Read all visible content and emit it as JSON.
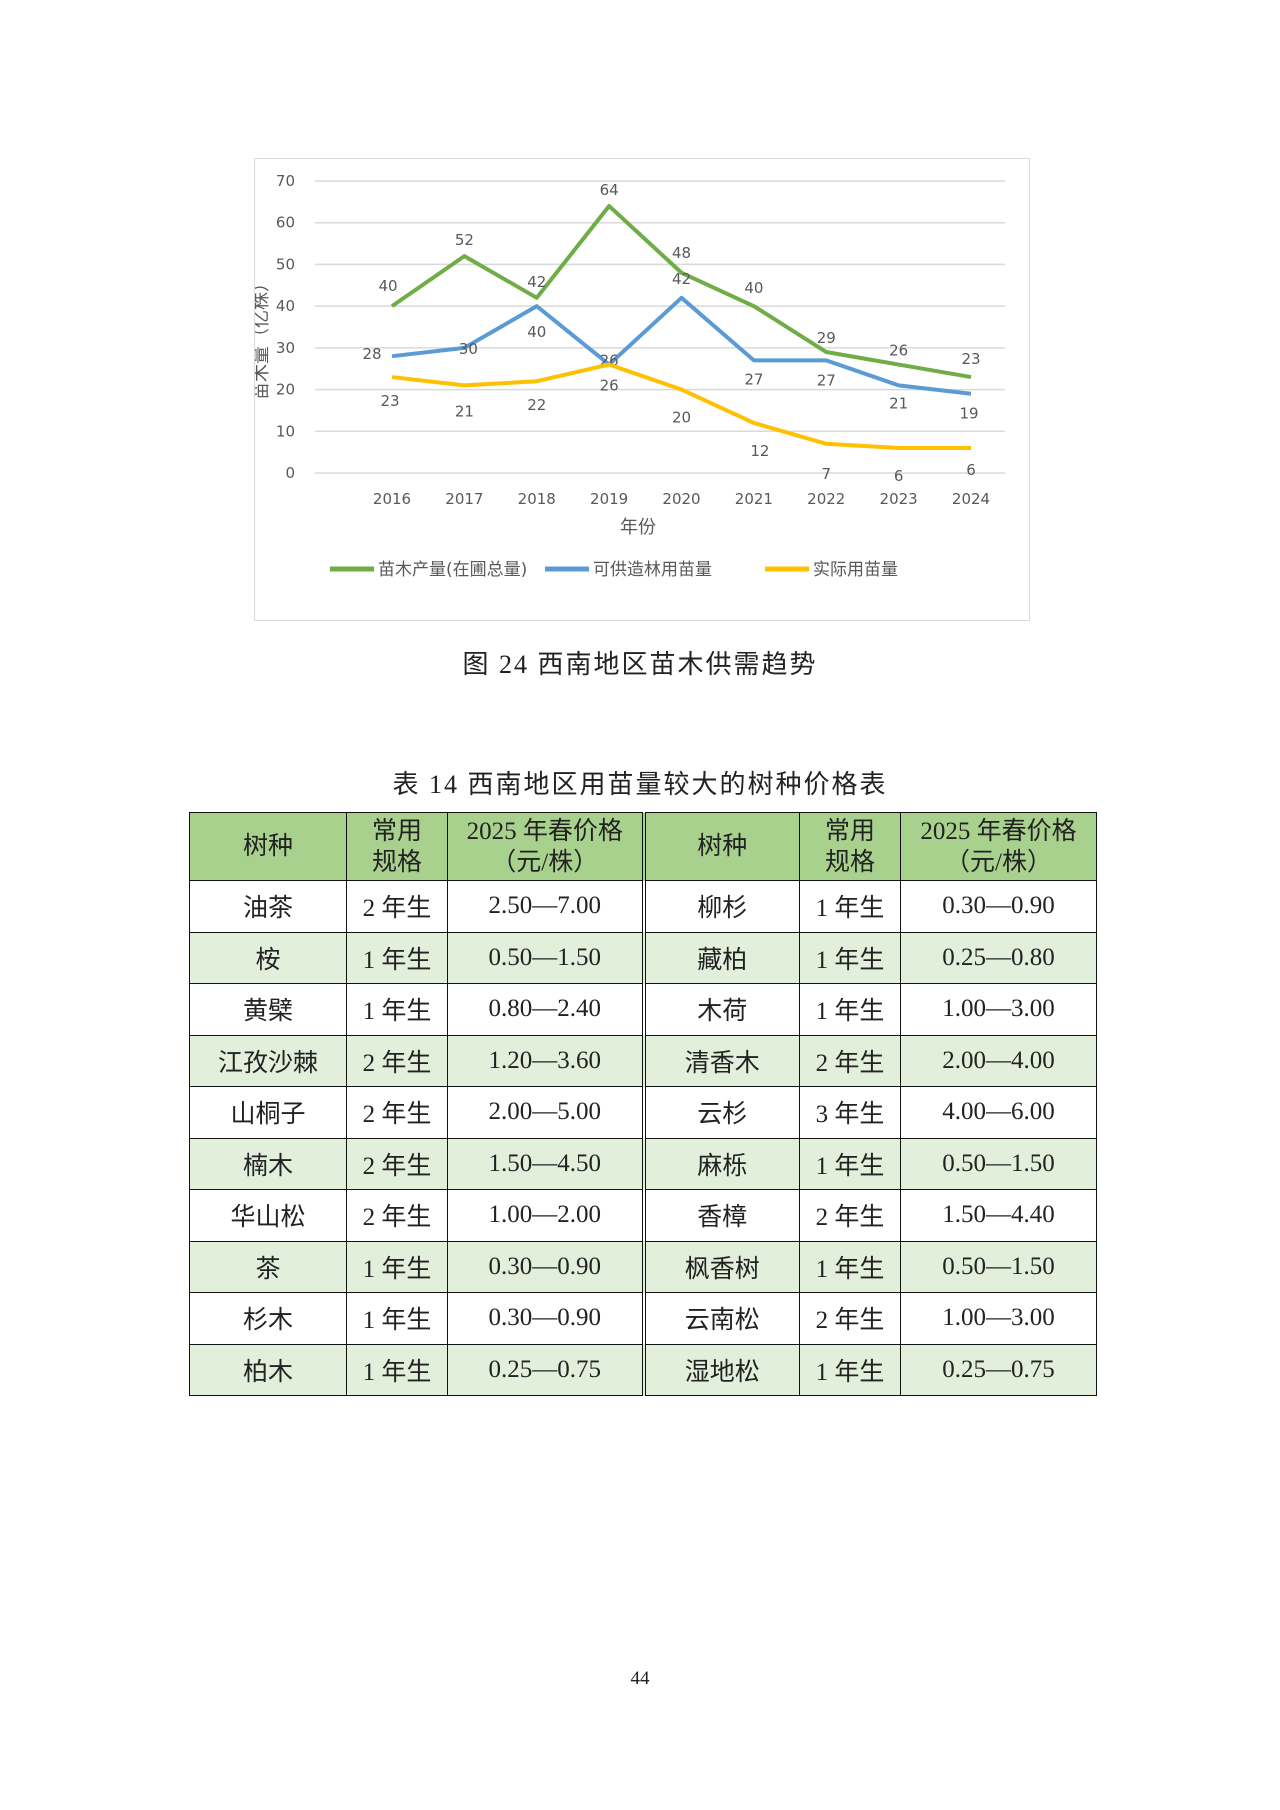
{
  "chart_data": {
    "type": "line",
    "caption": "图 24  西南地区苗木供需趋势",
    "categories": [
      "2016",
      "2017",
      "2018",
      "2019",
      "2020",
      "2021",
      "2022",
      "2023",
      "2024"
    ],
    "xlabel": "年份",
    "ylabel": "苗木量（亿株）",
    "ylim": [
      0,
      70
    ],
    "yticks": [
      0,
      10,
      20,
      30,
      40,
      50,
      60,
      70
    ],
    "grid": true,
    "legend_position": "bottom",
    "series": [
      {
        "name": "苗木产量(在圃总量)",
        "color": "#70ad47",
        "values": [
          40,
          52,
          42,
          64,
          48,
          40,
          29,
          26,
          23
        ]
      },
      {
        "name": "可供造林用苗量",
        "color": "#5b9bd5",
        "values": [
          28,
          30,
          40,
          26,
          42,
          27,
          27,
          21,
          19
        ]
      },
      {
        "name": "实际用苗量",
        "color": "#ffc000",
        "values": [
          23,
          21,
          22,
          26,
          20,
          12,
          7,
          6,
          6
        ]
      }
    ]
  },
  "table": {
    "title": "表 14  西南地区用苗量较大的树种价格表",
    "headers": {
      "species": "树种",
      "spec_1": "常用",
      "spec_2": "规格",
      "price_1": "2025 年春价格",
      "price_2": "（元/株）"
    },
    "rows": [
      [
        [
          "油茶",
          "2 年生",
          "2.50—7.00"
        ],
        [
          "柳杉",
          "1 年生",
          "0.30—0.90"
        ]
      ],
      [
        [
          "桉",
          "1 年生",
          "0.50—1.50"
        ],
        [
          "藏柏",
          "1 年生",
          "0.25—0.80"
        ]
      ],
      [
        [
          "黄檗",
          "1 年生",
          "0.80—2.40"
        ],
        [
          "木荷",
          "1 年生",
          "1.00—3.00"
        ]
      ],
      [
        [
          "江孜沙棘",
          "2 年生",
          "1.20—3.60"
        ],
        [
          "清香木",
          "2 年生",
          "2.00—4.00"
        ]
      ],
      [
        [
          "山桐子",
          "2 年生",
          "2.00—5.00"
        ],
        [
          "云杉",
          "3 年生",
          "4.00—6.00"
        ]
      ],
      [
        [
          "楠木",
          "2 年生",
          "1.50—4.50"
        ],
        [
          "麻栎",
          "1 年生",
          "0.50—1.50"
        ]
      ],
      [
        [
          "华山松",
          "2 年生",
          "1.00—2.00"
        ],
        [
          "香樟",
          "2 年生",
          "1.50—4.40"
        ]
      ],
      [
        [
          "茶",
          "1 年生",
          "0.30—0.90"
        ],
        [
          "枫香树",
          "1 年生",
          "0.50—1.50"
        ]
      ],
      [
        [
          "杉木",
          "1 年生",
          "0.30—0.90"
        ],
        [
          "云南松",
          "2 年生",
          "1.00—3.00"
        ]
      ],
      [
        [
          "柏木",
          "1 年生",
          "0.25—0.75"
        ],
        [
          "湿地松",
          "1 年生",
          "0.25—0.75"
        ]
      ]
    ]
  },
  "page_number": "44"
}
